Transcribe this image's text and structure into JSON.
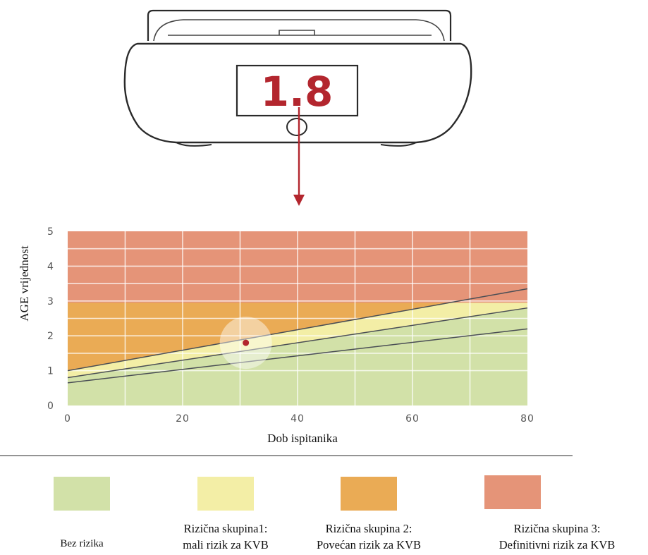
{
  "device": {
    "display_value": "1.8"
  },
  "chart_data": {
    "type": "area",
    "xlabel": "Dob ispitanika",
    "ylabel": "AGE vrijednost",
    "xlim": [
      0,
      80
    ],
    "ylim": [
      0,
      5
    ],
    "x_ticks": [
      "0",
      "20",
      "40",
      "60",
      "80"
    ],
    "y_ticks": [
      "0",
      "1",
      "2",
      "3",
      "4",
      "5"
    ],
    "grid": true,
    "zones": [
      {
        "color": "#d2e1a8"
      },
      {
        "color": "#f3eea6"
      },
      {
        "color": "#eaab55"
      },
      {
        "color": "#e59478"
      }
    ],
    "series": [
      {
        "x": [
          0,
          80
        ],
        "y": [
          1.0,
          3.35
        ]
      },
      {
        "x": [
          0,
          80
        ],
        "y": [
          0.8,
          2.8
        ]
      },
      {
        "x": [
          0,
          80
        ],
        "y": [
          0.65,
          2.2
        ]
      }
    ],
    "zone_boundaries": {
      "orange_top": 2.95,
      "salmon_top": 5
    },
    "marker": {
      "x": 31,
      "y": 1.8,
      "color": "#b3262e"
    }
  },
  "legend": [
    {
      "color": "#d2e1a8",
      "lines": [
        "Bez rizika"
      ]
    },
    {
      "color": "#f3eea6",
      "lines": [
        "Rizična skupina1:",
        "mali rizik za KVB"
      ]
    },
    {
      "color": "#eaab55",
      "lines": [
        "Rizična skupina 2:",
        "Povećan rizik za KVB"
      ]
    },
    {
      "color": "#e59478",
      "lines": [
        "Rizična skupina 3:",
        "Definitivni  rizik za KVB"
      ]
    }
  ]
}
